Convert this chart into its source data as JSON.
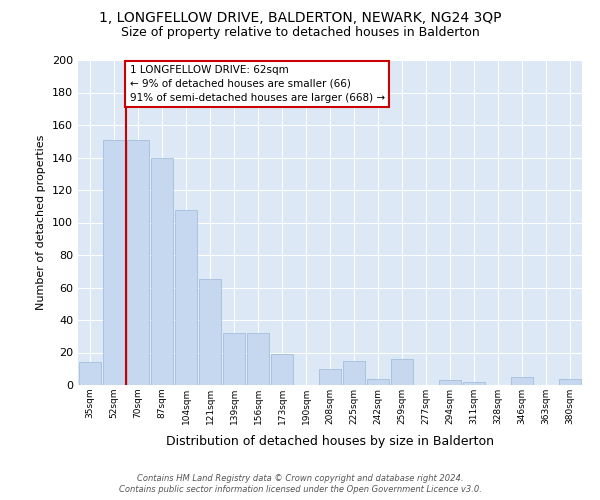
{
  "title1": "1, LONGFELLOW DRIVE, BALDERTON, NEWARK, NG24 3QP",
  "title2": "Size of property relative to detached houses in Balderton",
  "xlabel": "Distribution of detached houses by size in Balderton",
  "ylabel": "Number of detached properties",
  "categories": [
    "35sqm",
    "52sqm",
    "70sqm",
    "87sqm",
    "104sqm",
    "121sqm",
    "139sqm",
    "156sqm",
    "173sqm",
    "190sqm",
    "208sqm",
    "225sqm",
    "242sqm",
    "259sqm",
    "277sqm",
    "294sqm",
    "311sqm",
    "328sqm",
    "346sqm",
    "363sqm",
    "380sqm"
  ],
  "values": [
    14,
    151,
    151,
    140,
    108,
    65,
    32,
    32,
    19,
    0,
    10,
    15,
    4,
    16,
    0,
    3,
    2,
    0,
    5,
    0,
    4
  ],
  "bar_color": "#c5d8ef",
  "bar_edge_color": "#9ab8d8",
  "vline_x_index": 1.5,
  "annotation_line1": "1 LONGFELLOW DRIVE: 62sqm",
  "annotation_line2": "← 9% of detached houses are smaller (66)",
  "annotation_line3": "91% of semi-detached houses are larger (668) →",
  "annotation_box_color": "#ffffff",
  "annotation_box_edge": "#cc0000",
  "vline_color": "#cc0000",
  "fig_bg_color": "#ffffff",
  "plot_bg_color": "#dce8f5",
  "grid_color": "#ffffff",
  "footer_text": "Contains HM Land Registry data © Crown copyright and database right 2024.\nContains public sector information licensed under the Open Government Licence v3.0.",
  "ylim": [
    0,
    200
  ],
  "yticks": [
    0,
    20,
    40,
    60,
    80,
    100,
    120,
    140,
    160,
    180,
    200
  ]
}
